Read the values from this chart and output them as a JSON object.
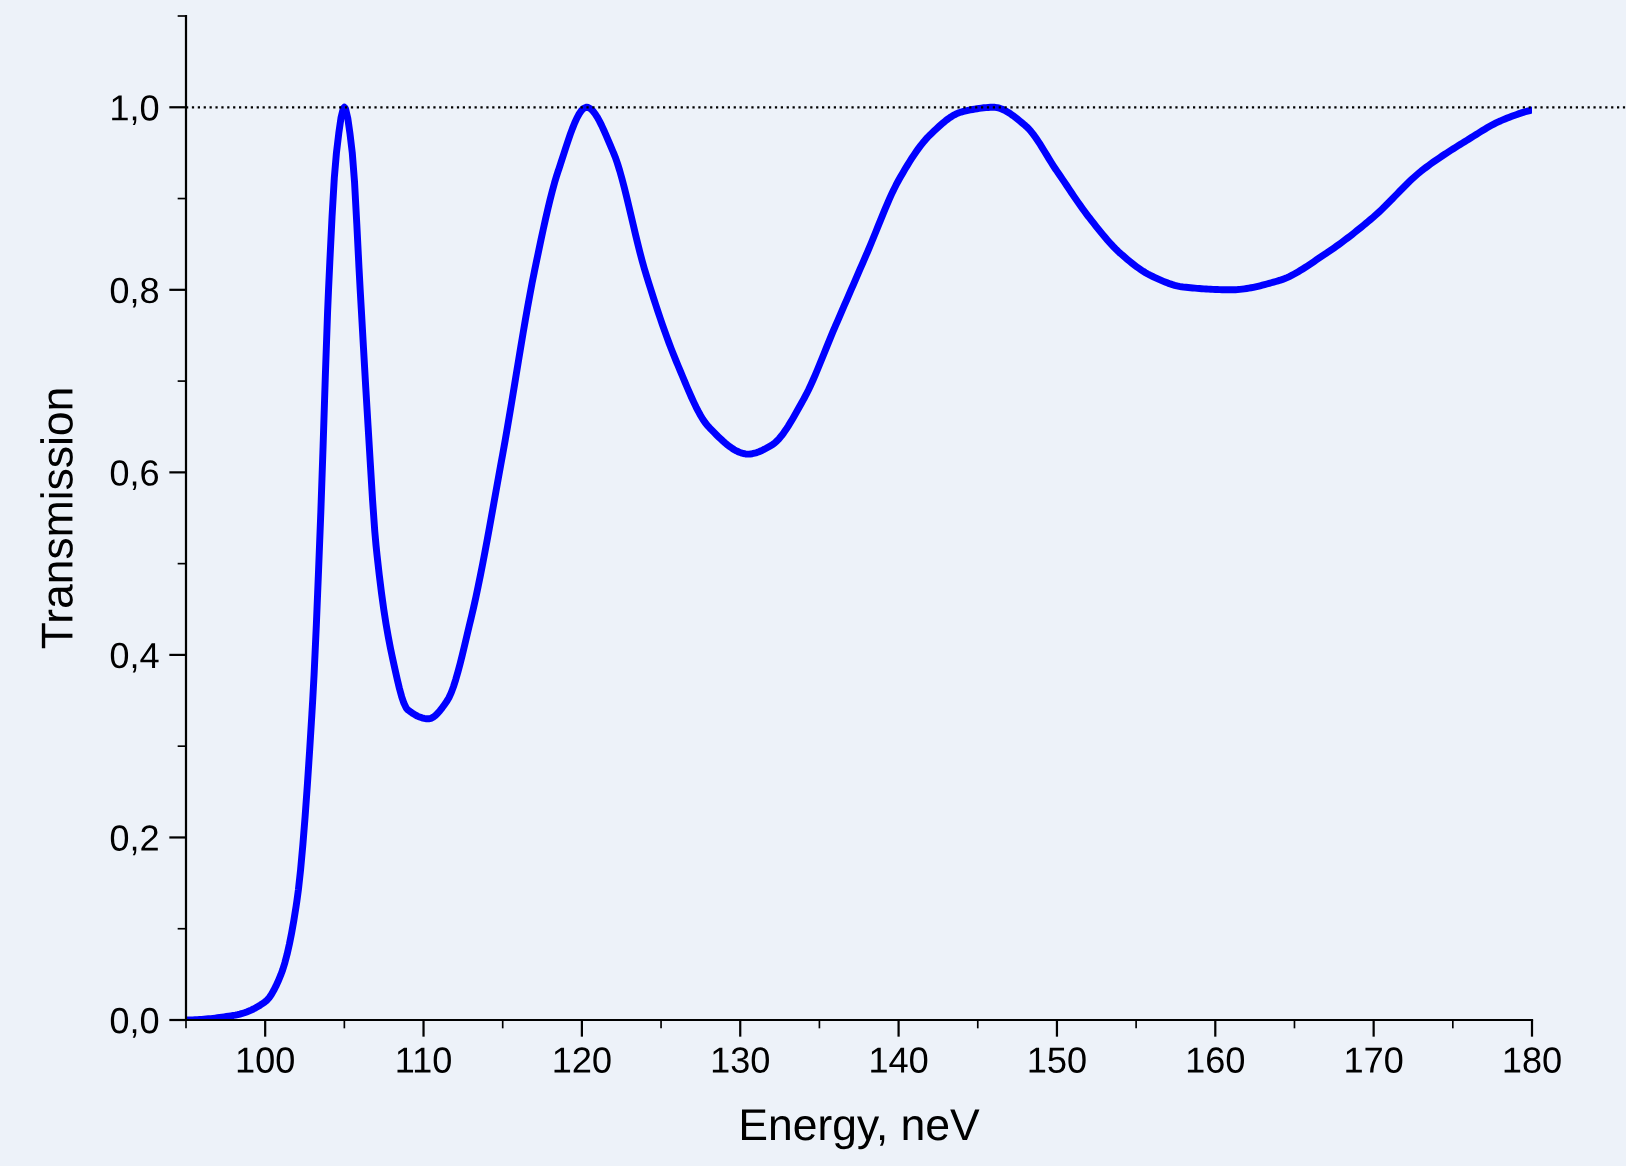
{
  "chart_data": {
    "type": "line",
    "xlabel": "Energy, neV",
    "ylabel": "Transmission",
    "xlim": [
      95,
      180
    ],
    "ylim": [
      0,
      1.1
    ],
    "xticks": [
      100,
      110,
      120,
      130,
      140,
      150,
      160,
      170,
      180
    ],
    "yticks": [
      {
        "value": 0,
        "label": "0,0"
      },
      {
        "value": 0.2,
        "label": "0,2"
      },
      {
        "value": 0.4,
        "label": "0,4"
      },
      {
        "value": 0.6,
        "label": "0,6"
      },
      {
        "value": 0.8,
        "label": "0,8"
      },
      {
        "value": 1.0,
        "label": "1,0"
      }
    ],
    "grid": false,
    "legend": false,
    "marker": "none",
    "line_style": "solid",
    "ref_lines": [
      {
        "axis": "y",
        "value": 1.0,
        "label": null,
        "color": "#000000",
        "line_style": "dotted"
      }
    ],
    "series": [
      {
        "color": "#0000ff",
        "x": [
          95,
          98,
          100,
          101,
          102,
          103,
          103.5,
          104,
          104.5,
          105,
          105.5,
          106,
          106.5,
          107,
          108,
          109,
          110.3,
          111.5,
          113,
          115,
          117,
          118.5,
          120.3,
          122,
          124,
          126,
          128,
          130.5,
          132,
          134,
          136,
          138,
          140,
          142,
          144,
          146,
          148,
          150,
          152,
          154,
          156,
          158,
          161,
          164,
          167,
          170,
          173,
          176,
          178,
          180
        ],
        "values": [
          0.0,
          0.005,
          0.02,
          0.05,
          0.13,
          0.35,
          0.55,
          0.8,
          0.95,
          1.0,
          0.95,
          0.8,
          0.65,
          0.52,
          0.4,
          0.34,
          0.33,
          0.35,
          0.44,
          0.62,
          0.82,
          0.93,
          1.0,
          0.95,
          0.82,
          0.72,
          0.65,
          0.62,
          0.63,
          0.68,
          0.76,
          0.84,
          0.92,
          0.97,
          0.995,
          1.0,
          0.98,
          0.93,
          0.88,
          0.84,
          0.815,
          0.803,
          0.8,
          0.81,
          0.84,
          0.88,
          0.93,
          0.965,
          0.985,
          0.997
        ]
      }
    ]
  }
}
